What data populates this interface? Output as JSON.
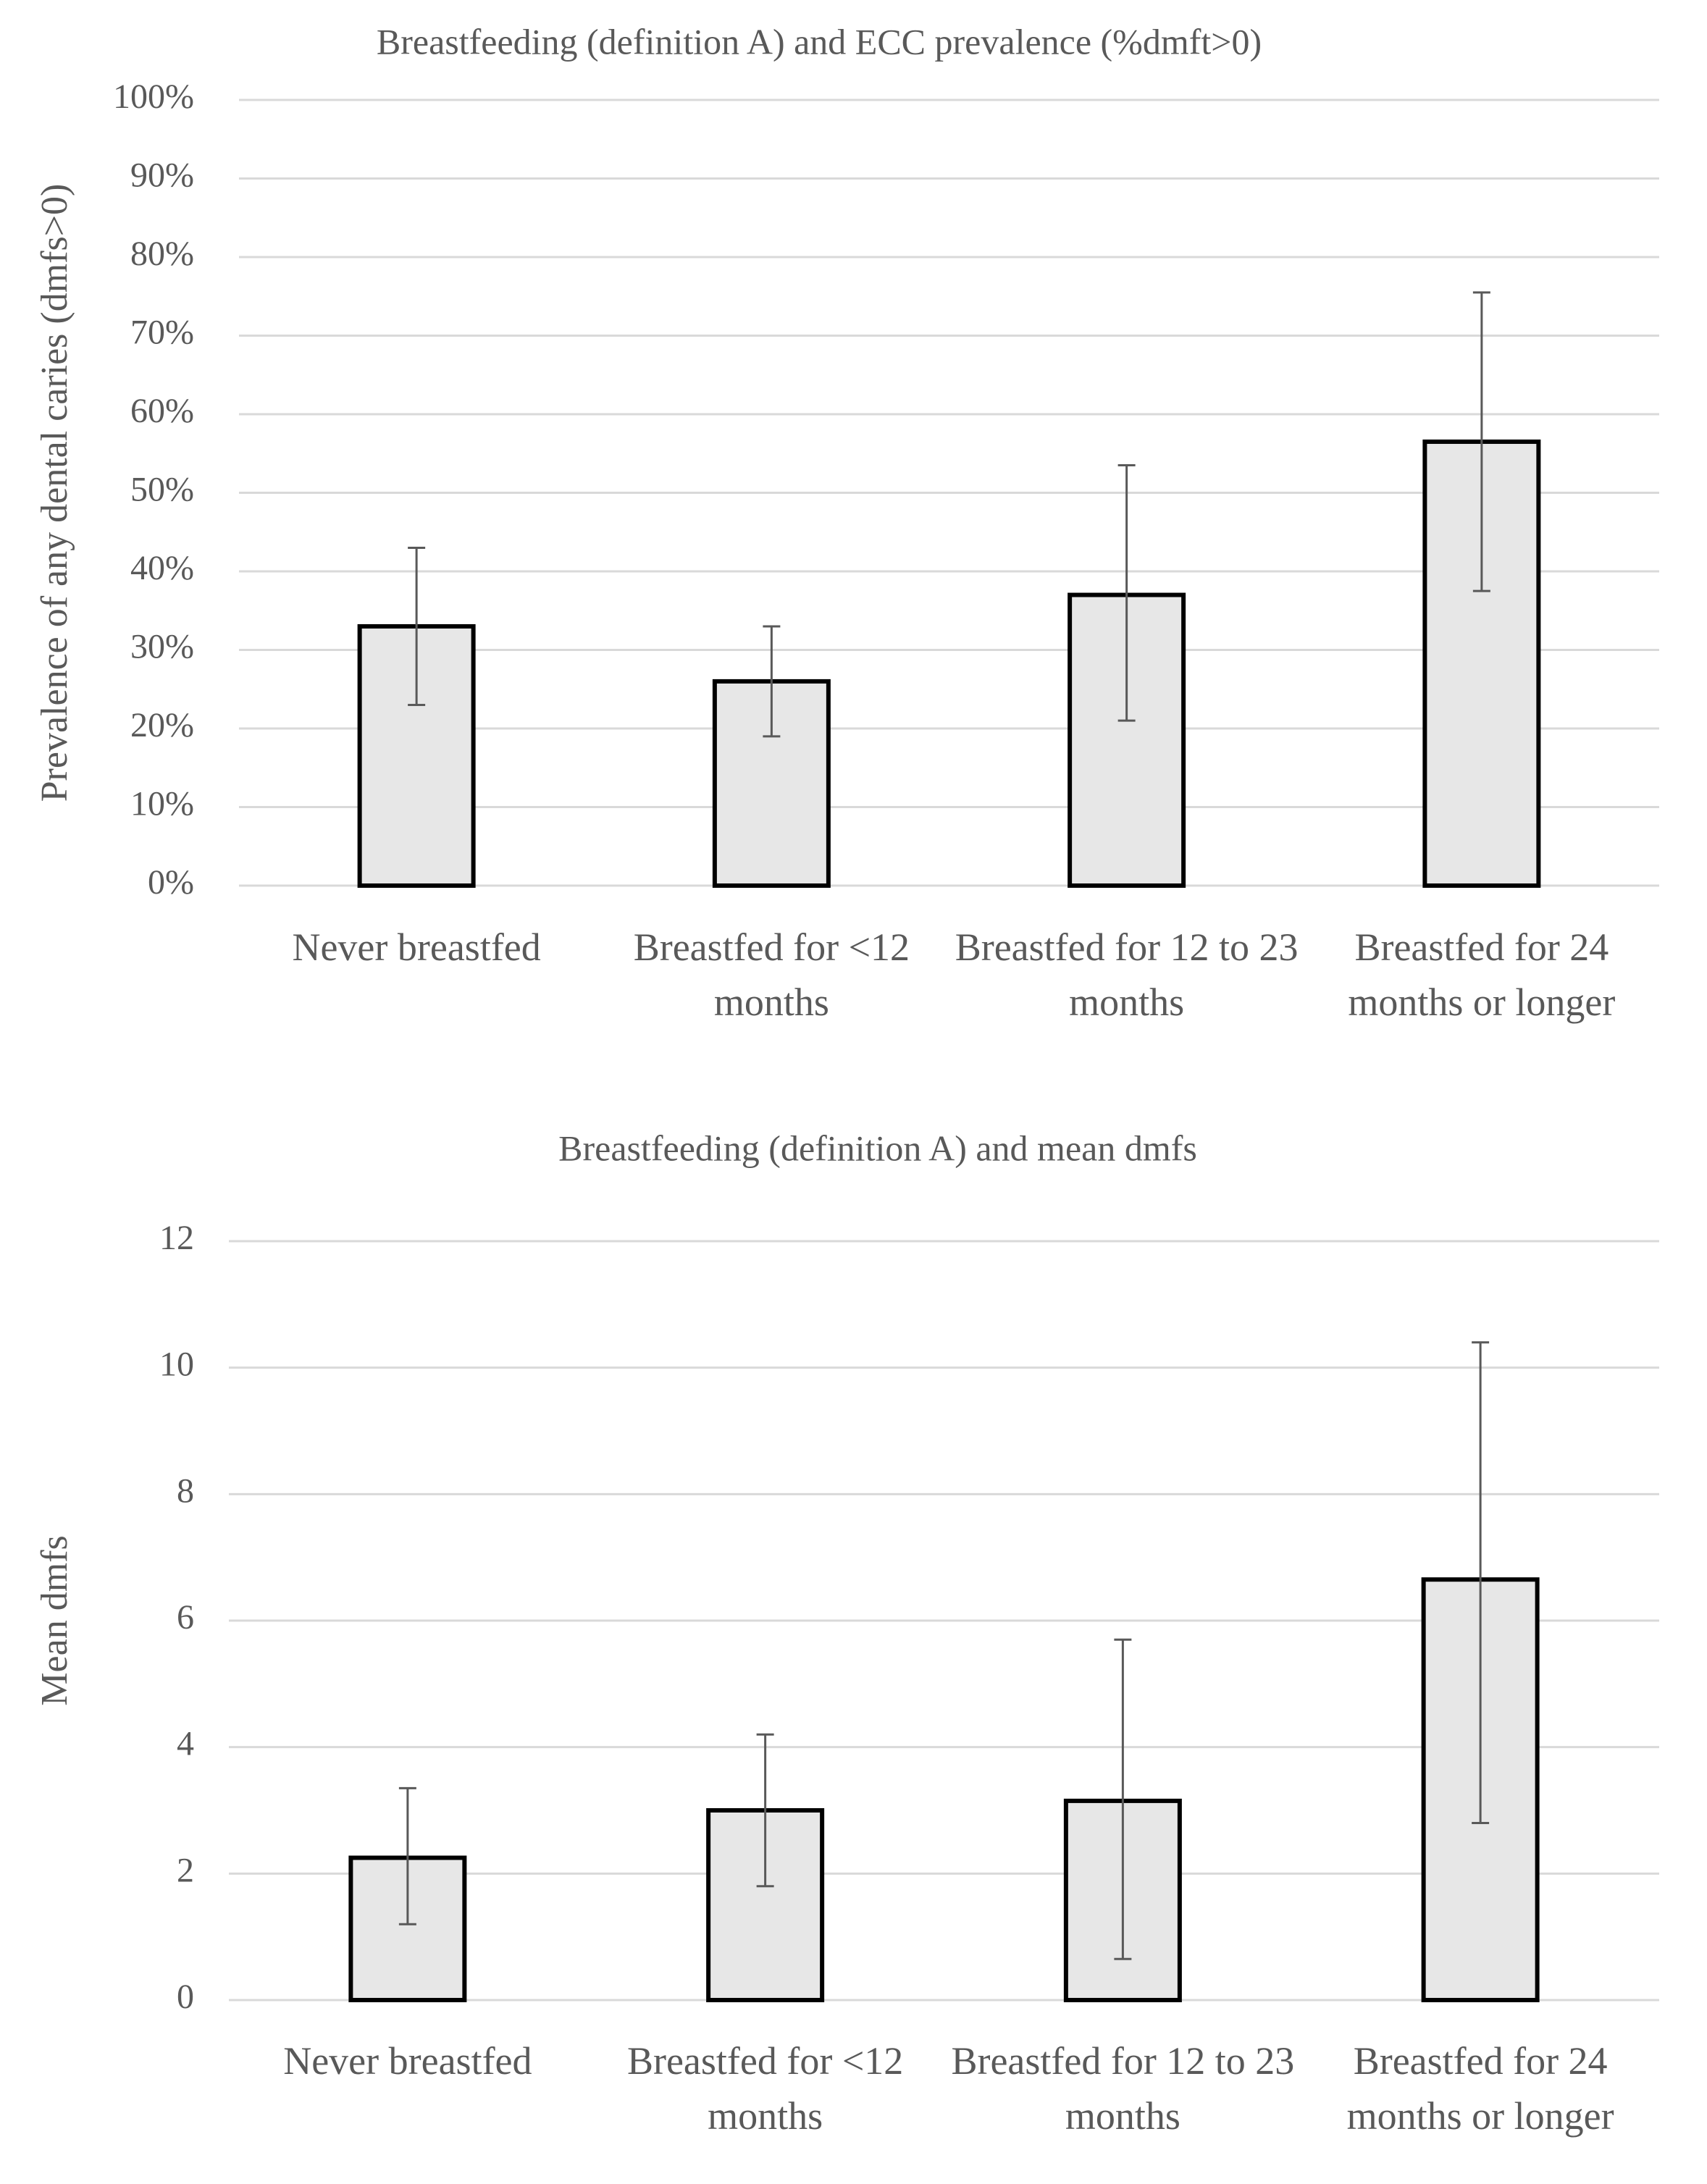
{
  "chart_data": [
    {
      "type": "bar",
      "title": "Breastfeeding (definition A) and ECC prevalence (%dmft>0)",
      "y_label": "Prevalence of any dental caries (dmfs>0)",
      "categories": [
        "Never breastfed",
        "Breastfed for <12 months",
        "Breastfed for 12 to 23 months",
        "Breastfed for 24 months or longer"
      ],
      "values": [
        33,
        26,
        37,
        56.5
      ],
      "ci_low": [
        23,
        19,
        21,
        37.5
      ],
      "ci_high": [
        43,
        33,
        53.5,
        75.5
      ],
      "color": "#e7e7e7",
      "ylim": [
        0,
        100
      ],
      "yticks": [
        {
          "value": 0,
          "label": "0%"
        },
        {
          "value": 10,
          "label": "10%"
        },
        {
          "value": 20,
          "label": "20%"
        },
        {
          "value": 30,
          "label": "30%"
        },
        {
          "value": 40,
          "label": "40%"
        },
        {
          "value": 50,
          "label": "50%"
        },
        {
          "value": 60,
          "label": "60%"
        },
        {
          "value": 70,
          "label": "70%"
        },
        {
          "value": 80,
          "label": "80%"
        },
        {
          "value": 90,
          "label": "90%"
        },
        {
          "value": 100,
          "label": "100%"
        }
      ],
      "grid": true
    },
    {
      "type": "bar",
      "title": "Breastfeeding (definition A) and mean dmfs",
      "y_label": "Mean dmfs",
      "categories": [
        "Never breastfed",
        "Breastfed for <12 months",
        "Breastfed for 12 to 23 months",
        "Breastfed for 24 months or longer"
      ],
      "values": [
        2.25,
        3.0,
        3.15,
        6.65
      ],
      "ci_low": [
        1.2,
        1.8,
        0.65,
        2.8
      ],
      "ci_high": [
        3.35,
        4.2,
        5.7,
        10.4
      ],
      "color": "#e7e7e7",
      "ylim": [
        0,
        12
      ],
      "yticks": [
        0,
        2,
        4,
        6,
        8,
        10,
        12
      ],
      "grid": true
    }
  ]
}
